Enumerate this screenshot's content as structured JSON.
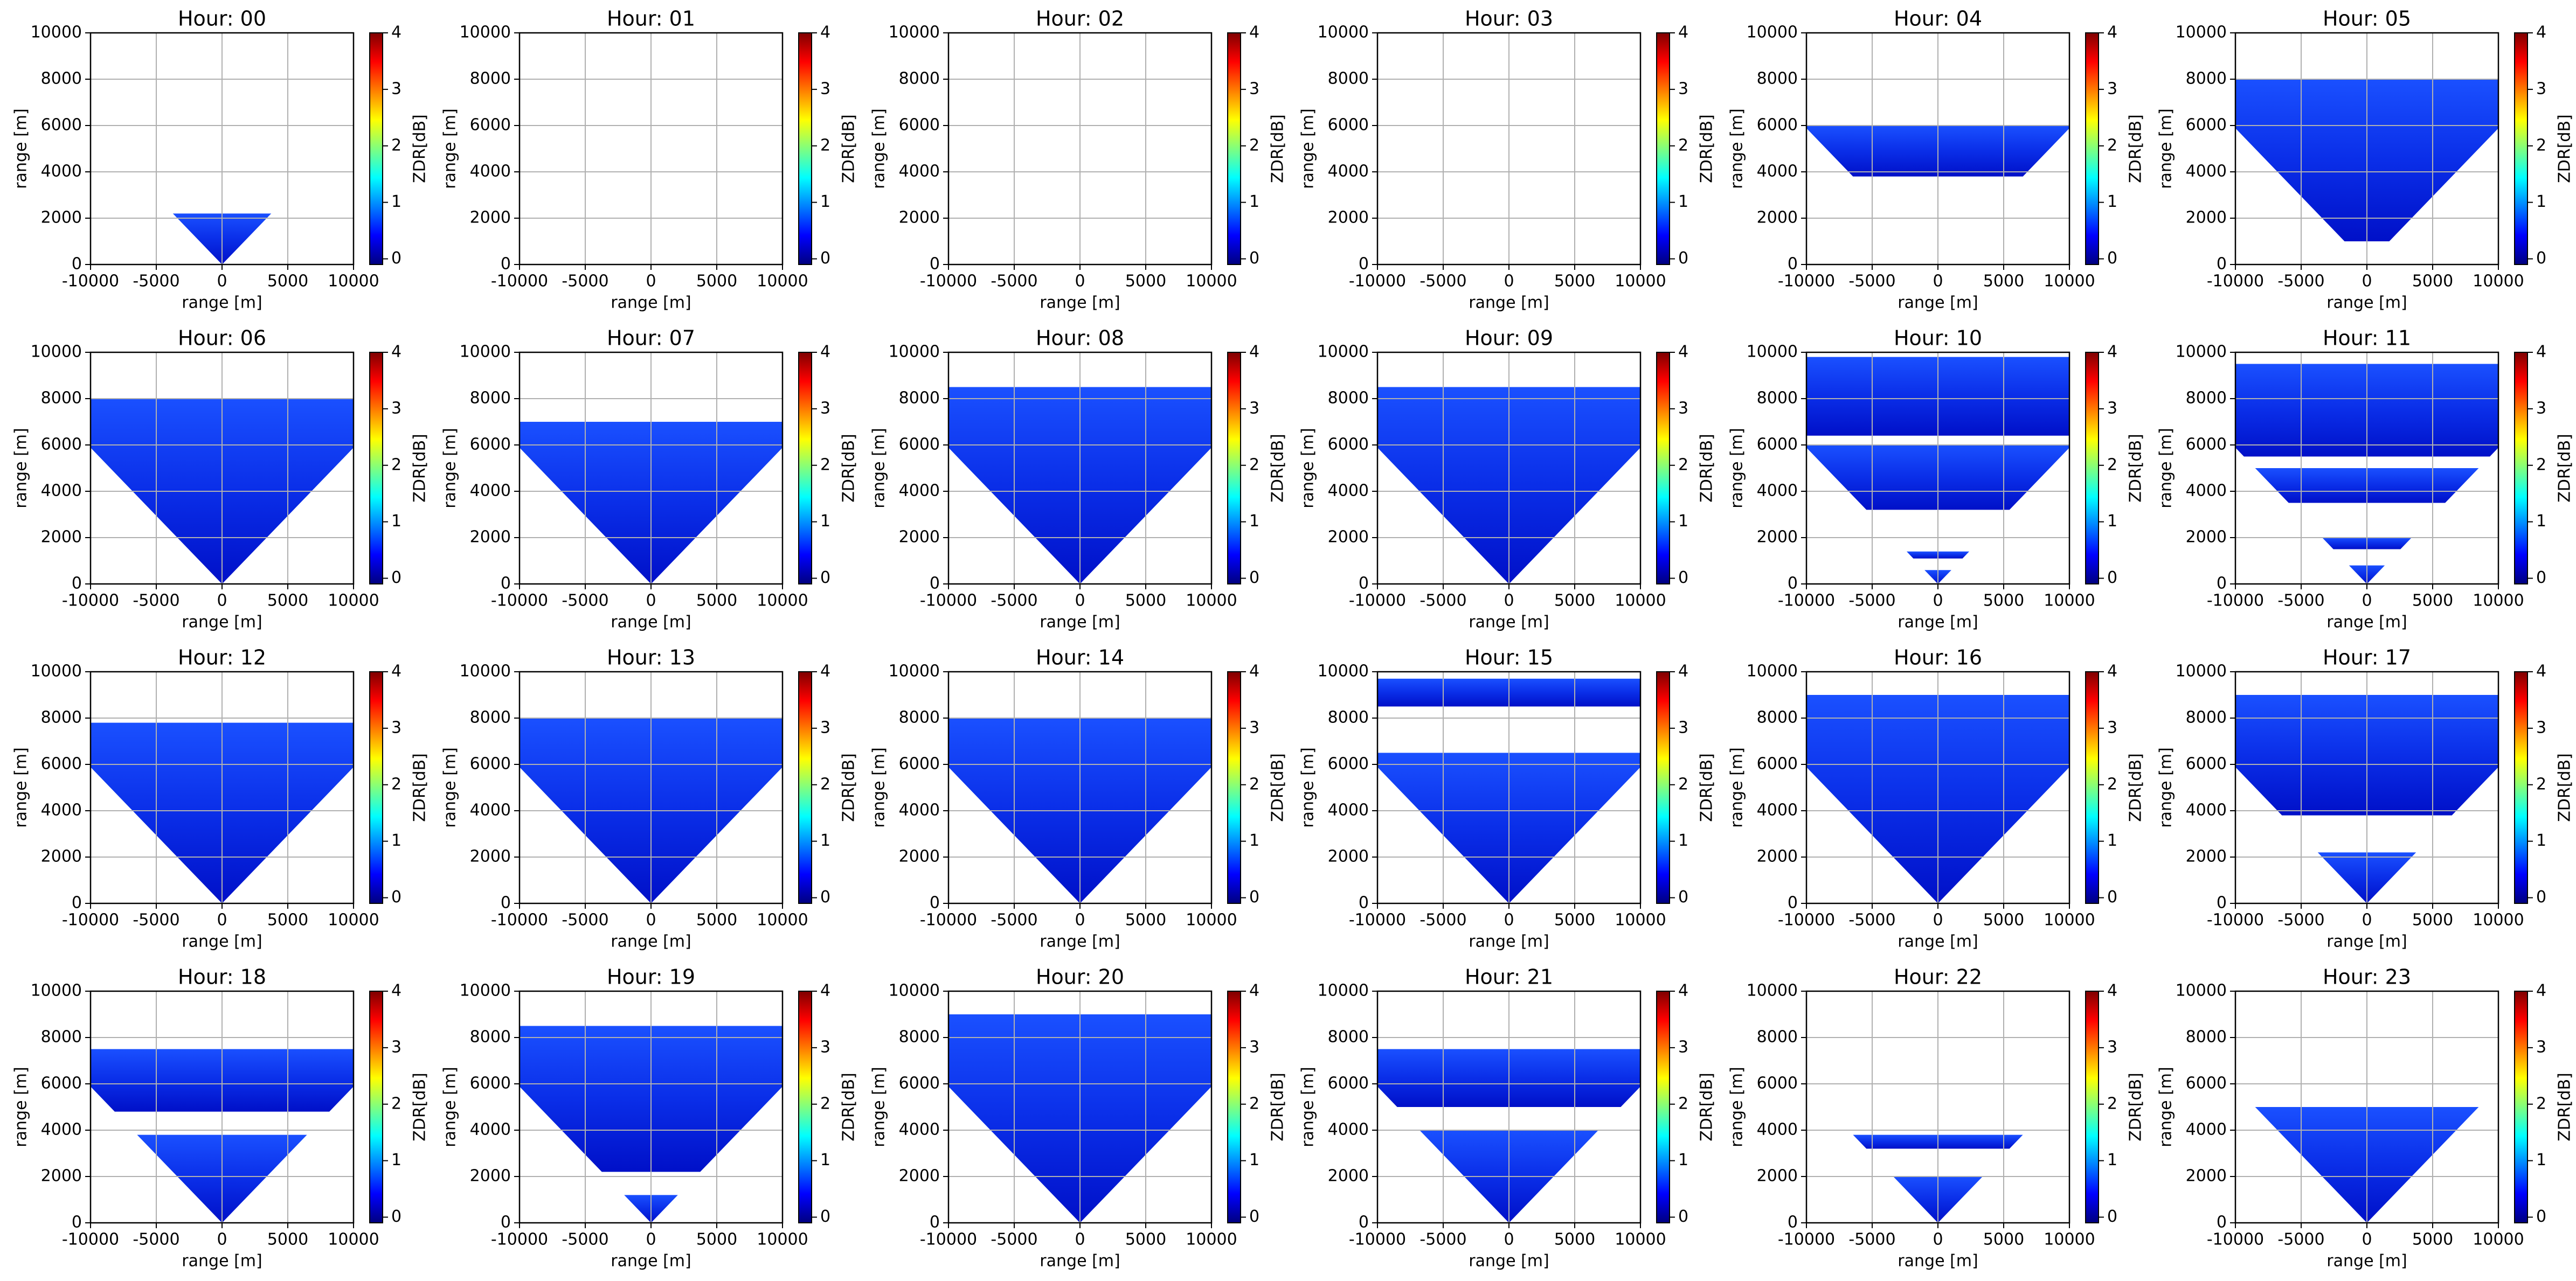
{
  "chart_data": [
    {
      "type": "heatmap",
      "title": "Hour: 00",
      "xlabel": "range [m]",
      "ylabel": "range [m]",
      "xlim": [
        -10000,
        10000
      ],
      "ylim": [
        0,
        10000
      ],
      "xticks": [
        -10000,
        -5000,
        0,
        5000,
        10000
      ],
      "yticks": [
        0,
        2000,
        4000,
        6000,
        8000,
        10000
      ],
      "grid": true,
      "layers": [
        {
          "base": 0,
          "top": 2200
        }
      ],
      "clim": [
        -0.1,
        4
      ],
      "cticks": [
        0,
        1,
        2,
        3,
        4
      ],
      "clabel": "ZDR[dB]",
      "colormap": "jet"
    },
    {
      "type": "heatmap",
      "title": "Hour: 01",
      "xlabel": "range [m]",
      "ylabel": "range [m]",
      "xlim": [
        -10000,
        10000
      ],
      "ylim": [
        0,
        10000
      ],
      "xticks": [
        -10000,
        -5000,
        0,
        5000,
        10000
      ],
      "yticks": [
        0,
        2000,
        4000,
        6000,
        8000,
        10000
      ],
      "grid": true,
      "layers": [],
      "clim": [
        -0.1,
        4
      ],
      "cticks": [
        0,
        1,
        2,
        3,
        4
      ],
      "clabel": "ZDR[dB]",
      "colormap": "jet"
    },
    {
      "type": "heatmap",
      "title": "Hour: 02",
      "xlabel": "range [m]",
      "ylabel": "range [m]",
      "xlim": [
        -10000,
        10000
      ],
      "ylim": [
        0,
        10000
      ],
      "xticks": [
        -10000,
        -5000,
        0,
        5000,
        10000
      ],
      "yticks": [
        0,
        2000,
        4000,
        6000,
        8000,
        10000
      ],
      "grid": true,
      "layers": [],
      "clim": [
        -0.1,
        4
      ],
      "cticks": [
        0,
        1,
        2,
        3,
        4
      ],
      "clabel": "ZDR[dB]",
      "colormap": "jet"
    },
    {
      "type": "heatmap",
      "title": "Hour: 03",
      "xlabel": "range [m]",
      "ylabel": "range [m]",
      "xlim": [
        -10000,
        10000
      ],
      "ylim": [
        0,
        10000
      ],
      "xticks": [
        -10000,
        -5000,
        0,
        5000,
        10000
      ],
      "yticks": [
        0,
        2000,
        4000,
        6000,
        8000,
        10000
      ],
      "grid": true,
      "layers": [],
      "clim": [
        -0.1,
        4
      ],
      "cticks": [
        0,
        1,
        2,
        3,
        4
      ],
      "clabel": "ZDR[dB]",
      "colormap": "jet"
    },
    {
      "type": "heatmap",
      "title": "Hour: 04",
      "xlabel": "range [m]",
      "ylabel": "range [m]",
      "xlim": [
        -10000,
        10000
      ],
      "ylim": [
        0,
        10000
      ],
      "xticks": [
        -10000,
        -5000,
        0,
        5000,
        10000
      ],
      "yticks": [
        0,
        2000,
        4000,
        6000,
        8000,
        10000
      ],
      "grid": true,
      "layers": [
        {
          "base": 3800,
          "top": 6000
        }
      ],
      "clim": [
        -0.1,
        4
      ],
      "cticks": [
        0,
        1,
        2,
        3,
        4
      ],
      "clabel": "ZDR[dB]",
      "colormap": "jet"
    },
    {
      "type": "heatmap",
      "title": "Hour: 05",
      "xlabel": "range [m]",
      "ylabel": "range [m]",
      "xlim": [
        -10000,
        10000
      ],
      "ylim": [
        0,
        10000
      ],
      "xticks": [
        -10000,
        -5000,
        0,
        5000,
        10000
      ],
      "yticks": [
        0,
        2000,
        4000,
        6000,
        8000,
        10000
      ],
      "grid": true,
      "layers": [
        {
          "base": 1000,
          "top": 8000
        }
      ],
      "clim": [
        -0.1,
        4
      ],
      "cticks": [
        0,
        1,
        2,
        3,
        4
      ],
      "clabel": "ZDR[dB]",
      "colormap": "jet"
    },
    {
      "type": "heatmap",
      "title": "Hour: 06",
      "xlabel": "range [m]",
      "ylabel": "range [m]",
      "xlim": [
        -10000,
        10000
      ],
      "ylim": [
        0,
        10000
      ],
      "xticks": [
        -10000,
        -5000,
        0,
        5000,
        10000
      ],
      "yticks": [
        0,
        2000,
        4000,
        6000,
        8000,
        10000
      ],
      "grid": true,
      "layers": [
        {
          "base": 0,
          "top": 8000
        }
      ],
      "clim": [
        -0.1,
        4
      ],
      "cticks": [
        0,
        1,
        2,
        3,
        4
      ],
      "clabel": "ZDR[dB]",
      "colormap": "jet"
    },
    {
      "type": "heatmap",
      "title": "Hour: 07",
      "xlabel": "range [m]",
      "ylabel": "range [m]",
      "xlim": [
        -10000,
        10000
      ],
      "ylim": [
        0,
        10000
      ],
      "xticks": [
        -10000,
        -5000,
        0,
        5000,
        10000
      ],
      "yticks": [
        0,
        2000,
        4000,
        6000,
        8000,
        10000
      ],
      "grid": true,
      "layers": [
        {
          "base": 0,
          "top": 7000
        }
      ],
      "clim": [
        -0.1,
        4
      ],
      "cticks": [
        0,
        1,
        2,
        3,
        4
      ],
      "clabel": "ZDR[dB]",
      "colormap": "jet"
    },
    {
      "type": "heatmap",
      "title": "Hour: 08",
      "xlabel": "range [m]",
      "ylabel": "range [m]",
      "xlim": [
        -10000,
        10000
      ],
      "ylim": [
        0,
        10000
      ],
      "xticks": [
        -10000,
        -5000,
        0,
        5000,
        10000
      ],
      "yticks": [
        0,
        2000,
        4000,
        6000,
        8000,
        10000
      ],
      "grid": true,
      "layers": [
        {
          "base": 0,
          "top": 8500
        }
      ],
      "clim": [
        -0.1,
        4
      ],
      "cticks": [
        0,
        1,
        2,
        3,
        4
      ],
      "clabel": "ZDR[dB]",
      "colormap": "jet"
    },
    {
      "type": "heatmap",
      "title": "Hour: 09",
      "xlabel": "range [m]",
      "ylabel": "range [m]",
      "xlim": [
        -10000,
        10000
      ],
      "ylim": [
        0,
        10000
      ],
      "xticks": [
        -10000,
        -5000,
        0,
        5000,
        10000
      ],
      "yticks": [
        0,
        2000,
        4000,
        6000,
        8000,
        10000
      ],
      "grid": true,
      "layers": [
        {
          "base": 0,
          "top": 8500
        }
      ],
      "clim": [
        -0.1,
        4
      ],
      "cticks": [
        0,
        1,
        2,
        3,
        4
      ],
      "clabel": "ZDR[dB]",
      "colormap": "jet"
    },
    {
      "type": "heatmap",
      "title": "Hour: 10",
      "xlabel": "range [m]",
      "ylabel": "range [m]",
      "xlim": [
        -10000,
        10000
      ],
      "ylim": [
        0,
        10000
      ],
      "xticks": [
        -10000,
        -5000,
        0,
        5000,
        10000
      ],
      "yticks": [
        0,
        2000,
        4000,
        6000,
        8000,
        10000
      ],
      "grid": true,
      "layers": [
        {
          "base": 3200,
          "top": 6000
        },
        {
          "base": 6400,
          "top": 9800
        },
        {
          "base": 1100,
          "top": 1400
        },
        {
          "base": 0,
          "top": 600
        }
      ],
      "clim": [
        -0.1,
        4
      ],
      "cticks": [
        0,
        1,
        2,
        3,
        4
      ],
      "clabel": "ZDR[dB]",
      "colormap": "jet"
    },
    {
      "type": "heatmap",
      "title": "Hour: 11",
      "xlabel": "range [m]",
      "ylabel": "range [m]",
      "xlim": [
        -10000,
        10000
      ],
      "ylim": [
        0,
        10000
      ],
      "xticks": [
        -10000,
        -5000,
        0,
        5000,
        10000
      ],
      "yticks": [
        0,
        2000,
        4000,
        6000,
        8000,
        10000
      ],
      "grid": true,
      "layers": [
        {
          "base": 3500,
          "top": 5000
        },
        {
          "base": 5500,
          "top": 9500
        },
        {
          "base": 1500,
          "top": 2000
        },
        {
          "base": 0,
          "top": 800
        }
      ],
      "clim": [
        -0.1,
        4
      ],
      "cticks": [
        0,
        1,
        2,
        3,
        4
      ],
      "clabel": "ZDR[dB]",
      "colormap": "jet"
    },
    {
      "type": "heatmap",
      "title": "Hour: 12",
      "xlabel": "range [m]",
      "ylabel": "range [m]",
      "xlim": [
        -10000,
        10000
      ],
      "ylim": [
        0,
        10000
      ],
      "xticks": [
        -10000,
        -5000,
        0,
        5000,
        10000
      ],
      "yticks": [
        0,
        2000,
        4000,
        6000,
        8000,
        10000
      ],
      "grid": true,
      "layers": [
        {
          "base": 0,
          "top": 7800
        }
      ],
      "clim": [
        -0.1,
        4
      ],
      "cticks": [
        0,
        1,
        2,
        3,
        4
      ],
      "clabel": "ZDR[dB]",
      "colormap": "jet"
    },
    {
      "type": "heatmap",
      "title": "Hour: 13",
      "xlabel": "range [m]",
      "ylabel": "range [m]",
      "xlim": [
        -10000,
        10000
      ],
      "ylim": [
        0,
        10000
      ],
      "xticks": [
        -10000,
        -5000,
        0,
        5000,
        10000
      ],
      "yticks": [
        0,
        2000,
        4000,
        6000,
        8000,
        10000
      ],
      "grid": true,
      "layers": [
        {
          "base": 0,
          "top": 8000
        }
      ],
      "clim": [
        -0.1,
        4
      ],
      "cticks": [
        0,
        1,
        2,
        3,
        4
      ],
      "clabel": "ZDR[dB]",
      "colormap": "jet"
    },
    {
      "type": "heatmap",
      "title": "Hour: 14",
      "xlabel": "range [m]",
      "ylabel": "range [m]",
      "xlim": [
        -10000,
        10000
      ],
      "ylim": [
        0,
        10000
      ],
      "xticks": [
        -10000,
        -5000,
        0,
        5000,
        10000
      ],
      "yticks": [
        0,
        2000,
        4000,
        6000,
        8000,
        10000
      ],
      "grid": true,
      "layers": [
        {
          "base": 0,
          "top": 8000
        }
      ],
      "clim": [
        -0.1,
        4
      ],
      "cticks": [
        0,
        1,
        2,
        3,
        4
      ],
      "clabel": "ZDR[dB]",
      "colormap": "jet"
    },
    {
      "type": "heatmap",
      "title": "Hour: 15",
      "xlabel": "range [m]",
      "ylabel": "range [m]",
      "xlim": [
        -10000,
        10000
      ],
      "ylim": [
        0,
        10000
      ],
      "xticks": [
        -10000,
        -5000,
        0,
        5000,
        10000
      ],
      "yticks": [
        0,
        2000,
        4000,
        6000,
        8000,
        10000
      ],
      "grid": true,
      "layers": [
        {
          "base": 0,
          "top": 6500
        },
        {
          "base": 8500,
          "top": 9700
        }
      ],
      "clim": [
        -0.1,
        4
      ],
      "cticks": [
        0,
        1,
        2,
        3,
        4
      ],
      "clabel": "ZDR[dB]",
      "colormap": "jet"
    },
    {
      "type": "heatmap",
      "title": "Hour: 16",
      "xlabel": "range [m]",
      "ylabel": "range [m]",
      "xlim": [
        -10000,
        10000
      ],
      "ylim": [
        0,
        10000
      ],
      "xticks": [
        -10000,
        -5000,
        0,
        5000,
        10000
      ],
      "yticks": [
        0,
        2000,
        4000,
        6000,
        8000,
        10000
      ],
      "grid": true,
      "layers": [
        {
          "base": 0,
          "top": 9000
        }
      ],
      "clim": [
        -0.1,
        4
      ],
      "cticks": [
        0,
        1,
        2,
        3,
        4
      ],
      "clabel": "ZDR[dB]",
      "colormap": "jet"
    },
    {
      "type": "heatmap",
      "title": "Hour: 17",
      "xlabel": "range [m]",
      "ylabel": "range [m]",
      "xlim": [
        -10000,
        10000
      ],
      "ylim": [
        0,
        10000
      ],
      "xticks": [
        -10000,
        -5000,
        0,
        5000,
        10000
      ],
      "yticks": [
        0,
        2000,
        4000,
        6000,
        8000,
        10000
      ],
      "grid": true,
      "layers": [
        {
          "base": 0,
          "top": 2200
        },
        {
          "base": 3800,
          "top": 9000
        }
      ],
      "clim": [
        -0.1,
        4
      ],
      "cticks": [
        0,
        1,
        2,
        3,
        4
      ],
      "clabel": "ZDR[dB]",
      "colormap": "jet"
    },
    {
      "type": "heatmap",
      "title": "Hour: 18",
      "xlabel": "range [m]",
      "ylabel": "range [m]",
      "xlim": [
        -10000,
        10000
      ],
      "ylim": [
        0,
        10000
      ],
      "xticks": [
        -10000,
        -5000,
        0,
        5000,
        10000
      ],
      "yticks": [
        0,
        2000,
        4000,
        6000,
        8000,
        10000
      ],
      "grid": true,
      "layers": [
        {
          "base": 0,
          "top": 3800
        },
        {
          "base": 4800,
          "top": 7500
        }
      ],
      "clim": [
        -0.1,
        4
      ],
      "cticks": [
        0,
        1,
        2,
        3,
        4
      ],
      "clabel": "ZDR[dB]",
      "colormap": "jet"
    },
    {
      "type": "heatmap",
      "title": "Hour: 19",
      "xlabel": "range [m]",
      "ylabel": "range [m]",
      "xlim": [
        -10000,
        10000
      ],
      "ylim": [
        0,
        10000
      ],
      "xticks": [
        -10000,
        -5000,
        0,
        5000,
        10000
      ],
      "yticks": [
        0,
        2000,
        4000,
        6000,
        8000,
        10000
      ],
      "grid": true,
      "layers": [
        {
          "base": 2200,
          "top": 8500
        },
        {
          "base": 0,
          "top": 1200
        }
      ],
      "clim": [
        -0.1,
        4
      ],
      "cticks": [
        0,
        1,
        2,
        3,
        4
      ],
      "clabel": "ZDR[dB]",
      "colormap": "jet"
    },
    {
      "type": "heatmap",
      "title": "Hour: 20",
      "xlabel": "range [m]",
      "ylabel": "range [m]",
      "xlim": [
        -10000,
        10000
      ],
      "ylim": [
        0,
        10000
      ],
      "xticks": [
        -10000,
        -5000,
        0,
        5000,
        10000
      ],
      "yticks": [
        0,
        2000,
        4000,
        6000,
        8000,
        10000
      ],
      "grid": true,
      "layers": [
        {
          "base": 0,
          "top": 9000
        }
      ],
      "clim": [
        -0.1,
        4
      ],
      "cticks": [
        0,
        1,
        2,
        3,
        4
      ],
      "clabel": "ZDR[dB]",
      "colormap": "jet"
    },
    {
      "type": "heatmap",
      "title": "Hour: 21",
      "xlabel": "range [m]",
      "ylabel": "range [m]",
      "xlim": [
        -10000,
        10000
      ],
      "ylim": [
        0,
        10000
      ],
      "xticks": [
        -10000,
        -5000,
        0,
        5000,
        10000
      ],
      "yticks": [
        0,
        2000,
        4000,
        6000,
        8000,
        10000
      ],
      "grid": true,
      "layers": [
        {
          "base": 0,
          "top": 4000
        },
        {
          "base": 5000,
          "top": 7500
        }
      ],
      "clim": [
        -0.1,
        4
      ],
      "cticks": [
        0,
        1,
        2,
        3,
        4
      ],
      "clabel": "ZDR[dB]",
      "colormap": "jet"
    },
    {
      "type": "heatmap",
      "title": "Hour: 22",
      "xlabel": "range [m]",
      "ylabel": "range [m]",
      "xlim": [
        -10000,
        10000
      ],
      "ylim": [
        0,
        10000
      ],
      "xticks": [
        -10000,
        -5000,
        0,
        5000,
        10000
      ],
      "yticks": [
        0,
        2000,
        4000,
        6000,
        8000,
        10000
      ],
      "grid": true,
      "layers": [
        {
          "base": 0,
          "top": 2000
        },
        {
          "base": 3200,
          "top": 3800
        }
      ],
      "clim": [
        -0.1,
        4
      ],
      "cticks": [
        0,
        1,
        2,
        3,
        4
      ],
      "clabel": "ZDR[dB]",
      "colormap": "jet"
    },
    {
      "type": "heatmap",
      "title": "Hour: 23",
      "xlabel": "range [m]",
      "ylabel": "range [m]",
      "xlim": [
        -10000,
        10000
      ],
      "ylim": [
        0,
        10000
      ],
      "xticks": [
        -10000,
        -5000,
        0,
        5000,
        10000
      ],
      "yticks": [
        0,
        2000,
        4000,
        6000,
        8000,
        10000
      ],
      "grid": true,
      "layers": [
        {
          "base": 0,
          "top": 5000
        }
      ],
      "clim": [
        -0.1,
        4
      ],
      "cticks": [
        0,
        1,
        2,
        3,
        4
      ],
      "clabel": "ZDR[dB]",
      "colormap": "jet"
    }
  ]
}
